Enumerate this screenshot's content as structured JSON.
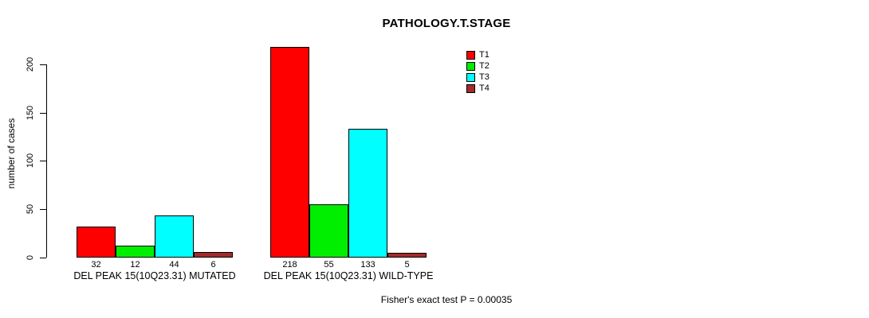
{
  "title": "PATHOLOGY.T.STAGE",
  "chart_data": {
    "type": "bar",
    "title": "PATHOLOGY.T.STAGE",
    "ylabel": "number of cases",
    "xlabel": "",
    "ylim": [
      0,
      220
    ],
    "yticks": [
      0,
      50,
      100,
      150,
      200
    ],
    "grid": false,
    "legend_position": "top-right",
    "categories": [
      "DEL PEAK 15(10Q23.31) MUTATED",
      "DEL PEAK 15(10Q23.31) WILD-TYPE"
    ],
    "series": [
      {
        "name": "T1",
        "color": "#FF0000",
        "values": [
          32,
          218
        ]
      },
      {
        "name": "T2",
        "color": "#00EE00",
        "values": [
          12,
          55
        ]
      },
      {
        "name": "T3",
        "color": "#00FFFF",
        "values": [
          44,
          133
        ]
      },
      {
        "name": "T4",
        "color": "#A52A2A",
        "values": [
          6,
          5
        ]
      }
    ],
    "bar_value_labels": [
      [
        32,
        12,
        44,
        6
      ],
      [
        218,
        55,
        133,
        5
      ]
    ],
    "annotation": "Fisher's exact test P = 0.00035"
  }
}
